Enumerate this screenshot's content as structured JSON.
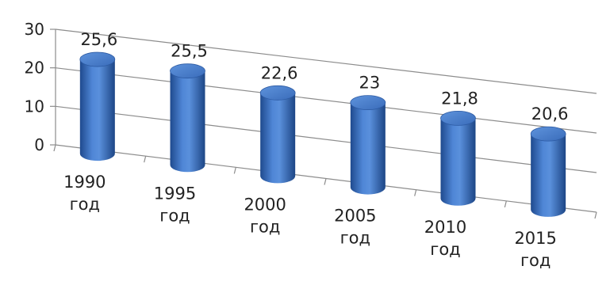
{
  "chart_data": {
    "type": "bar",
    "categories": [
      "1990\nгод",
      "1995\nгод",
      "2000\nгод",
      "2005\nгод",
      "2010\nгод",
      "2015\nгод"
    ],
    "values": [
      25.6,
      25.5,
      22.6,
      23,
      21.8,
      20.6
    ],
    "data_labels": [
      "25,6",
      "25,5",
      "22,6",
      "23",
      "21,8",
      "20,6"
    ],
    "y_ticks": [
      "0",
      "10",
      "20",
      "30"
    ],
    "ylim": [
      0,
      30
    ],
    "grid": true,
    "bar_shape": "cylinder",
    "bar_color": "#3d6fbd",
    "title": "",
    "xlabel": "",
    "ylabel": ""
  }
}
